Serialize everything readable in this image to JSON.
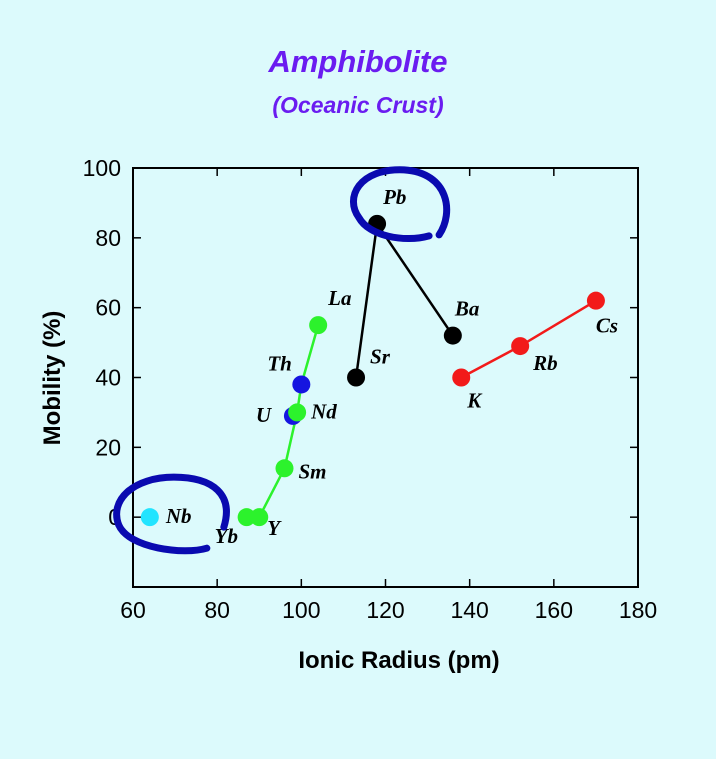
{
  "chart_data": {
    "type": "scatter",
    "title": "Amphibolite",
    "subtitle": "(Oceanic Crust)",
    "xlabel": "Ionic Radius (pm)",
    "ylabel": "Mobility (%)",
    "xlim": [
      60,
      180
    ],
    "ylim": [
      -20,
      100
    ],
    "xticks": [
      "60",
      "80",
      "100",
      "120",
      "140",
      "160",
      "180"
    ],
    "yticks": [
      "0",
      "20",
      "40",
      "60",
      "80",
      "100"
    ],
    "grid": false,
    "points": [
      {
        "label": "Nb",
        "x": 64,
        "y": 0,
        "color": "#22e4ff"
      },
      {
        "label": "Yb",
        "x": 87,
        "y": 0,
        "color": "#2cf22c"
      },
      {
        "label": "Y",
        "x": 90,
        "y": 0,
        "color": "#2cf22c"
      },
      {
        "label": "Sm",
        "x": 96,
        "y": 14,
        "color": "#2cf22c"
      },
      {
        "label": "U",
        "x": 98,
        "y": 29,
        "color": "#1515e0"
      },
      {
        "label": "Nd",
        "x": 99,
        "y": 30,
        "color": "#2cf22c"
      },
      {
        "label": "Th",
        "x": 100,
        "y": 38,
        "color": "#1515e0"
      },
      {
        "label": "La",
        "x": 104,
        "y": 55,
        "color": "#2cf22c"
      },
      {
        "label": "Sr",
        "x": 113,
        "y": 40,
        "color": "#000000"
      },
      {
        "label": "Pb",
        "x": 118,
        "y": 84,
        "color": "#000000"
      },
      {
        "label": "Ba",
        "x": 136,
        "y": 52,
        "color": "#000000"
      },
      {
        "label": "K",
        "x": 138,
        "y": 40,
        "color": "#f21a1a"
      },
      {
        "label": "Rb",
        "x": 152,
        "y": 49,
        "color": "#f21a1a"
      },
      {
        "label": "Cs",
        "x": 170,
        "y": 62,
        "color": "#f21a1a"
      }
    ],
    "lines": [
      {
        "color": "#2cf22c",
        "labels": [
          "Yb",
          "Y",
          "Sm",
          "Nd",
          "Th",
          "La"
        ]
      },
      {
        "color": "#000000",
        "labels": [
          "Sr",
          "Pb",
          "Ba"
        ]
      },
      {
        "color": "#f21a1a",
        "labels": [
          "K",
          "Rb",
          "Cs"
        ]
      }
    ],
    "highlight_circles": [
      "Pb",
      "Nb"
    ],
    "highlight_color": "#0a0ab0"
  }
}
